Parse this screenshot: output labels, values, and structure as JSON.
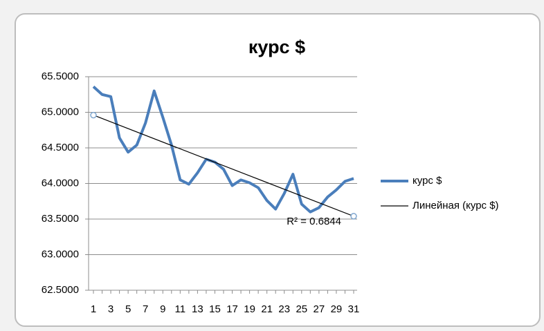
{
  "chart_data": {
    "type": "line",
    "title": "курс $",
    "categories": [
      1,
      null,
      3,
      null,
      5,
      null,
      7,
      null,
      9,
      null,
      11,
      null,
      13,
      null,
      15,
      null,
      17,
      null,
      19,
      null,
      21,
      null,
      23,
      null,
      25,
      null,
      27,
      null,
      29,
      null,
      31
    ],
    "series": [
      {
        "name": "курс $",
        "color": "#4a7ebb",
        "values": [
          65.36,
          65.25,
          65.22,
          64.64,
          64.44,
          64.54,
          64.85,
          65.3,
          64.93,
          64.54,
          64.05,
          63.99,
          64.15,
          64.34,
          64.3,
          64.2,
          63.97,
          64.05,
          64.01,
          63.94,
          63.76,
          63.64,
          63.86,
          64.13,
          63.71,
          63.6,
          63.66,
          63.81,
          63.91,
          64.03,
          64.07
        ]
      }
    ],
    "trendline": {
      "name": "Линейная (курс $)",
      "color": "#000000",
      "start": 64.96,
      "end": 63.54,
      "label": "R² = 0.6844"
    },
    "ylim": [
      62.5,
      65.5
    ],
    "yticks": [
      {
        "value": 62.5,
        "label": "62.5000"
      },
      {
        "value": 63,
        "label": "63.0000"
      },
      {
        "value": 63.5,
        "label": "63.5000"
      },
      {
        "value": 64,
        "label": "64.0000"
      },
      {
        "value": 64.5,
        "label": "64.5000"
      },
      {
        "value": 65,
        "label": "65.0000"
      },
      {
        "value": 65.5,
        "label": "65.5000"
      }
    ],
    "grid": true,
    "legend": "right"
  }
}
